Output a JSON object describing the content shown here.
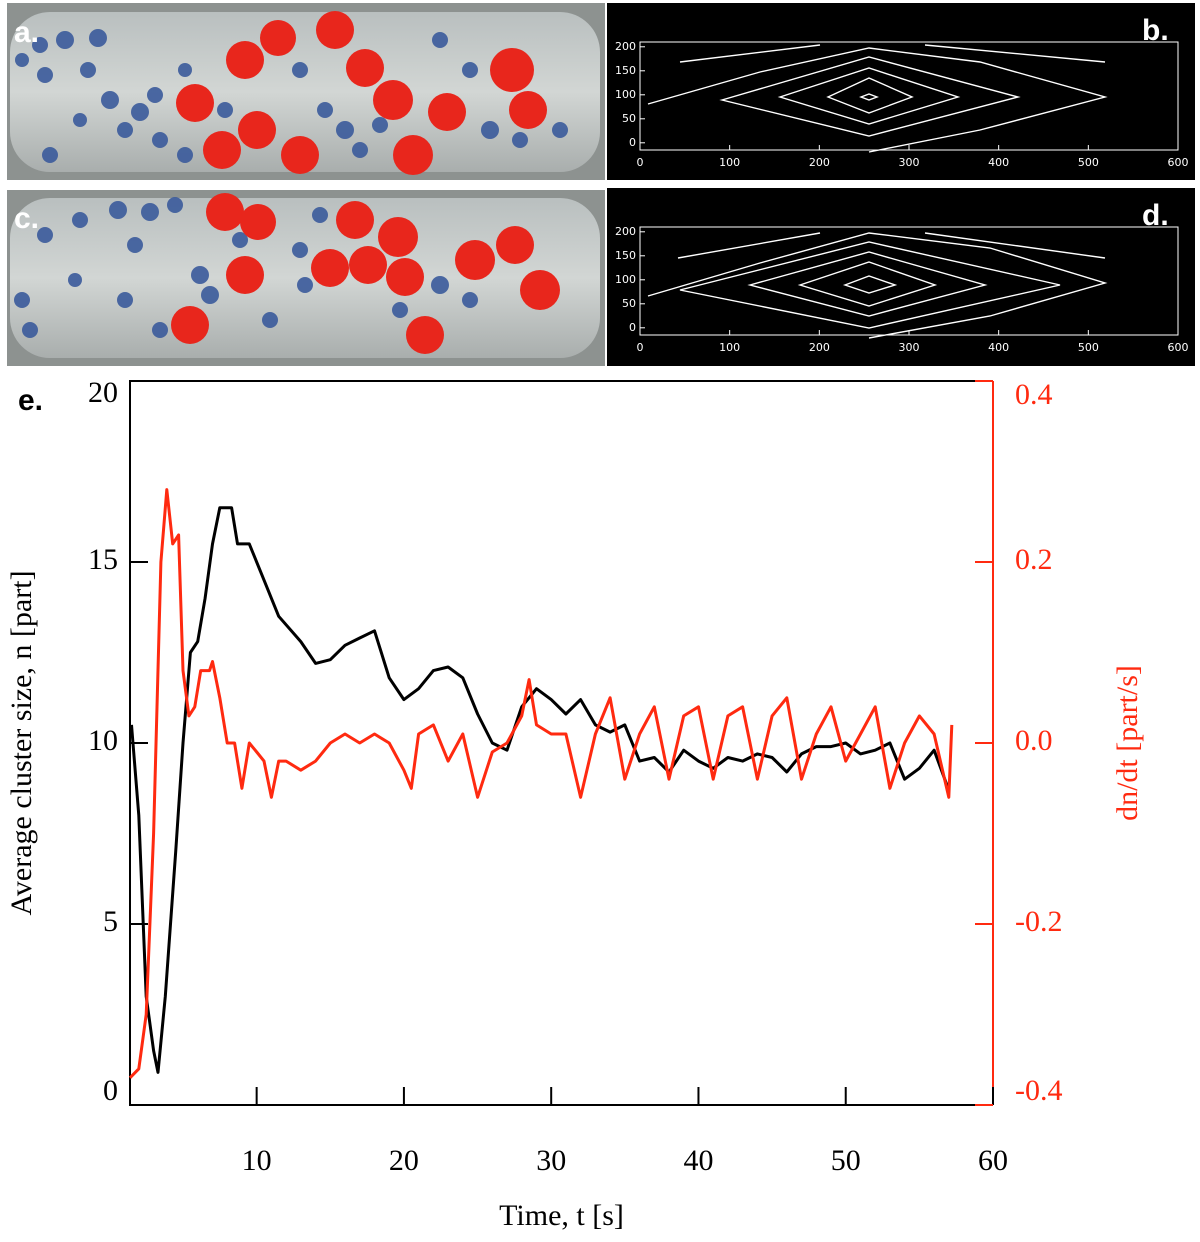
{
  "panels": [
    {
      "label": "a."
    },
    {
      "label": "c."
    }
  ],
  "chart_data": [
    {
      "type": "contour",
      "label": "b.",
      "xlim": [
        0,
        600
      ],
      "ylim": [
        -15,
        210
      ],
      "xticks": [
        0,
        100,
        200,
        300,
        400,
        500,
        600
      ],
      "yticks": [
        0,
        50,
        100,
        150,
        200
      ]
    },
    {
      "type": "contour",
      "label": "d.",
      "xlim": [
        0,
        600
      ],
      "ylim": [
        -15,
        210
      ],
      "xticks": [
        0,
        100,
        200,
        300,
        400,
        500,
        600
      ],
      "yticks": [
        0,
        50,
        100,
        150,
        200
      ]
    },
    {
      "type": "line",
      "label": "e.",
      "xlabel": "Time, t [s]",
      "ylabel": "Average cluster size, n [part]",
      "y2label": "dn/dt [part/s]",
      "xlim": [
        1.4,
        60
      ],
      "xticks": [
        10,
        20,
        30,
        40,
        50,
        60
      ],
      "ylim": [
        0,
        20
      ],
      "yticks": [
        0,
        5,
        10,
        15,
        20
      ],
      "y2lim": [
        -0.4,
        0.4
      ],
      "y2ticks": [
        -0.4,
        -0.2,
        {
          "value": 0,
          "label": "0.0"
        },
        0.2,
        0.4
      ],
      "series": [
        {
          "color": "#000000",
          "x": [
            1.5,
            2,
            2.5,
            3,
            3.3,
            3.8,
            4.5,
            5,
            5.5,
            6,
            6.5,
            7,
            7.5,
            8.3,
            8.7,
            9.5,
            10.5,
            11.5,
            13,
            14,
            15,
            16,
            17,
            18,
            19,
            20,
            21,
            22,
            23,
            24,
            25,
            26,
            27,
            28,
            29,
            30,
            31,
            32,
            33,
            34,
            35,
            36,
            37,
            38,
            39,
            40,
            41,
            42,
            43,
            44,
            45,
            46,
            47,
            48,
            49,
            50,
            51,
            52,
            53,
            54,
            55,
            56,
            57
          ],
          "values": [
            10.5,
            8,
            3,
            1.5,
            0.9,
            3,
            7,
            10,
            12.5,
            12.8,
            14,
            15.5,
            16.5,
            16.5,
            15.5,
            15.5,
            14.5,
            13.5,
            12.8,
            12.2,
            12.3,
            12.7,
            12.9,
            13.1,
            11.8,
            11.2,
            11.5,
            12,
            12.1,
            11.8,
            10.8,
            10,
            9.8,
            11,
            11.5,
            11.2,
            10.8,
            11.2,
            10.5,
            10.3,
            10.5,
            9.5,
            9.6,
            9.2,
            9.8,
            9.5,
            9.3,
            9.6,
            9.5,
            9.7,
            9.6,
            9.2,
            9.7,
            9.9,
            9.9,
            10,
            9.7,
            9.8,
            10,
            9,
            9.3,
            9.8,
            8.7
          ]
        },
        {
          "color": "#ff2a10",
          "axis": "y2",
          "x": [
            1.4,
            2,
            2.5,
            3,
            3.5,
            3.9,
            4.3,
            4.7,
            5,
            5.4,
            5.8,
            6.2,
            6.8,
            7,
            7.5,
            8,
            8.5,
            9,
            9.5,
            10,
            10.5,
            11,
            11.5,
            12,
            13,
            14,
            15,
            16,
            17,
            18,
            19,
            20,
            20.5,
            21,
            22,
            23,
            24,
            25,
            26,
            27,
            28,
            28.5,
            29,
            30,
            31,
            32,
            33,
            34,
            35,
            36,
            37,
            38,
            39,
            40,
            41,
            42,
            43,
            44,
            45,
            46,
            47,
            48,
            49,
            50,
            51,
            52,
            53,
            54,
            55,
            56,
            57,
            57.2
          ],
          "values": [
            -0.37,
            -0.36,
            -0.3,
            -0.1,
            0.2,
            0.28,
            0.22,
            0.23,
            0.08,
            0.03,
            0.04,
            0.08,
            0.08,
            0.09,
            0.05,
            0,
            0,
            -0.05,
            0,
            -0.01,
            -0.02,
            -0.06,
            -0.02,
            -0.02,
            -0.03,
            -0.02,
            0,
            0.01,
            0,
            0.01,
            0,
            -0.03,
            -0.05,
            0.01,
            0.02,
            -0.02,
            0.01,
            -0.06,
            -0.01,
            0,
            0.03,
            0.07,
            0.02,
            0.01,
            0.01,
            -0.06,
            0.01,
            0.05,
            -0.04,
            0.01,
            0.04,
            -0.04,
            0.03,
            0.04,
            -0.04,
            0.03,
            0.04,
            -0.04,
            0.03,
            0.05,
            -0.04,
            0.01,
            0.04,
            -0.02,
            0.01,
            0.04,
            -0.05,
            0,
            0.03,
            0.01,
            -0.06,
            0.02
          ]
        }
      ]
    }
  ]
}
